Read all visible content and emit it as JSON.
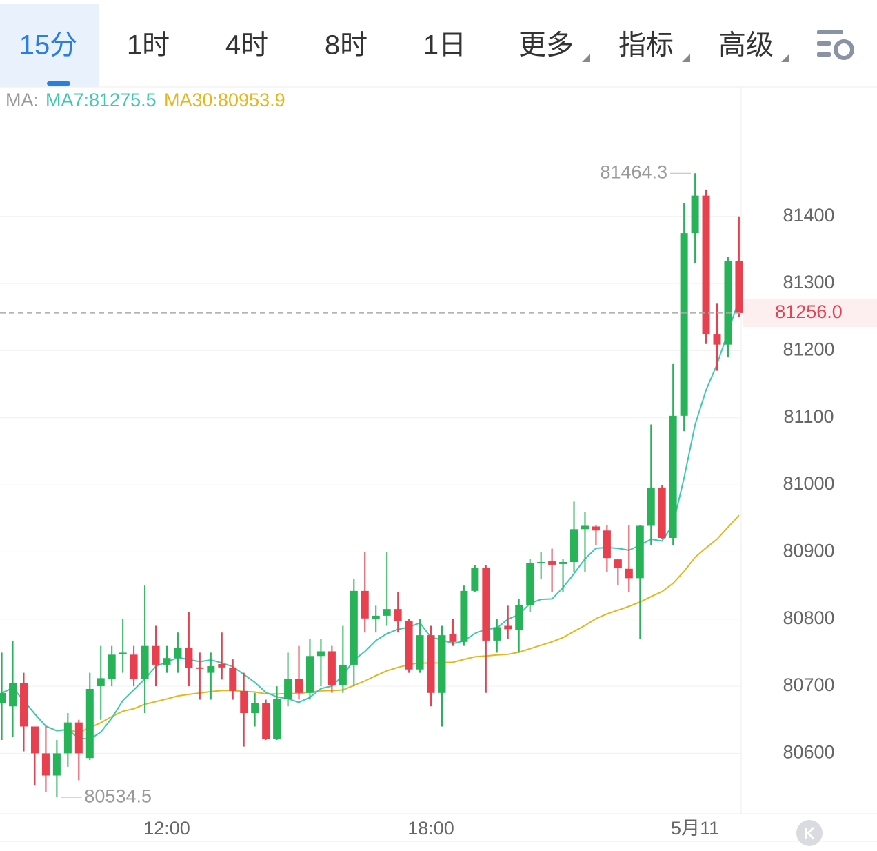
{
  "tabs": [
    "15分",
    "1时",
    "4时",
    "8时",
    "1日",
    "更多",
    "指标",
    "高级"
  ],
  "chart_data": {
    "type": "candlestick",
    "legend_prefix": "MA:",
    "ma7": "MA7:81275.5",
    "ma30": "MA30:80953.9",
    "ma7_color": "#3cc9b0",
    "ma30_color": "#e9b51c",
    "up_color": "#27b458",
    "down_color": "#e8404f",
    "categories": [
      null,
      null,
      null,
      null,
      null,
      null,
      null,
      null,
      null,
      null,
      null,
      null,
      null,
      null,
      null,
      "12:00",
      null,
      null,
      null,
      null,
      null,
      null,
      null,
      null,
      null,
      null,
      null,
      null,
      null,
      null,
      null,
      null,
      null,
      null,
      null,
      null,
      null,
      null,
      null,
      "18:00",
      null,
      null,
      null,
      null,
      null,
      null,
      null,
      null,
      null,
      null,
      null,
      null,
      null,
      null,
      null,
      null,
      null,
      null,
      null,
      null,
      null,
      null,
      null,
      "5月11",
      null,
      null,
      null,
      null
    ],
    "open": [
      80675,
      80670,
      80705,
      80640,
      80600,
      80567,
      80600,
      80646,
      80593,
      80700,
      80711,
      80748,
      80747,
      80711,
      80760,
      80732,
      80742,
      80757,
      80728,
      80720,
      80733,
      80728,
      80693,
      80660,
      80675,
      80622,
      80681,
      80711,
      80690,
      80745,
      80752,
      80701,
      80732,
      80842,
      80800,
      80805,
      80815,
      80797,
      80725,
      80776,
      80690,
      80778,
      80766,
      80842,
      80876,
      80768,
      80790,
      80784,
      80821,
      80884,
      80886,
      80882,
      80885,
      80934,
      80938,
      80932,
      80889,
      80875,
      80861,
      80939,
      80995,
      80921,
      81103,
      81375,
      81431,
      81224,
      81209,
      81333
    ],
    "high": [
      80750,
      80768,
      80720,
      80640,
      80640,
      80620,
      80660,
      80650,
      80720,
      80760,
      80760,
      80800,
      80760,
      80850,
      80790,
      80760,
      80780,
      80810,
      80750,
      80750,
      80780,
      80740,
      80720,
      80690,
      80680,
      80700,
      80750,
      80760,
      80770,
      80770,
      80760,
      80790,
      80860,
      80900,
      80820,
      80900,
      80840,
      80800,
      80800,
      80790,
      80790,
      80800,
      80850,
      80880,
      80880,
      80800,
      80820,
      80830,
      80890,
      80900,
      80905,
      80890,
      80975,
      80960,
      80940,
      80940,
      80890,
      80940,
      80940,
      81090,
      81000,
      81180,
      81420,
      81464.3,
      81440,
      81270,
      81340,
      81400
    ],
    "low": [
      80620,
      80624,
      80603,
      80552,
      80542,
      80534.5,
      80580,
      80560,
      80590,
      80650,
      80700,
      80720,
      80700,
      80660,
      80700,
      80720,
      80720,
      80700,
      80680,
      80680,
      80710,
      80680,
      80610,
      80640,
      80620,
      80620,
      80670,
      80680,
      80680,
      80700,
      80690,
      80690,
      80700,
      80780,
      80780,
      80790,
      80780,
      80720,
      80720,
      80670,
      80640,
      80760,
      80760,
      80840,
      80690,
      80750,
      80770,
      80750,
      80810,
      80860,
      80840,
      80840,
      80870,
      80870,
      80910,
      80870,
      80850,
      80840,
      80770,
      80910,
      80920,
      80910,
      81080,
      81330,
      81210,
      81170,
      81190,
      81250
    ],
    "close": [
      80690,
      80705,
      80640,
      80600,
      80567,
      80600,
      80646,
      80600,
      80696,
      80712,
      80747,
      80750,
      80711,
      80760,
      80732,
      80742,
      80757,
      80727,
      80727,
      80730,
      80728,
      80693,
      80660,
      80675,
      80622,
      80681,
      80711,
      80690,
      80745,
      80752,
      80701,
      80732,
      80842,
      80801,
      80805,
      80815,
      80797,
      80725,
      80776,
      80690,
      80776,
      80766,
      80842,
      80876,
      80768,
      80788,
      80785,
      80821,
      80883,
      80885,
      80881,
      80885,
      80934,
      80939,
      80932,
      80891,
      80876,
      80861,
      80939,
      80995,
      80921,
      81103,
      81375,
      81431,
      81224,
      81209,
      81333,
      81256
    ],
    "last_price": {
      "value": 81256,
      "label": "81256.0"
    },
    "ylim": [
      80510,
      81558
    ],
    "yticks": [
      80600,
      80700,
      80800,
      80900,
      81000,
      81100,
      81200,
      81300,
      81400
    ],
    "grid": true
  }
}
